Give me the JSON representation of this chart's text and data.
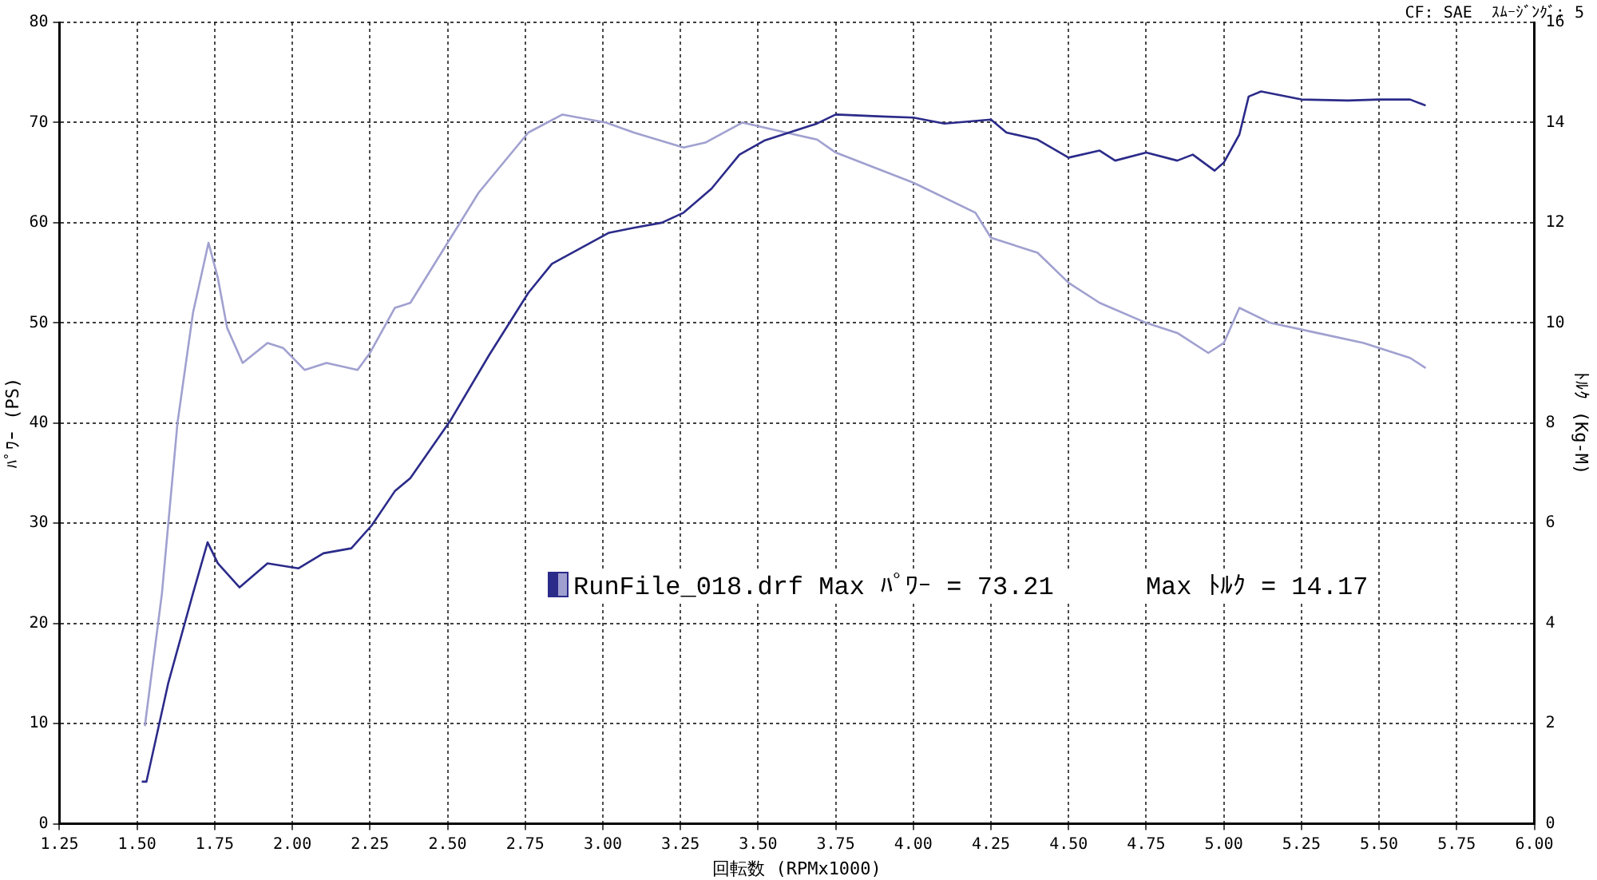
{
  "chart_data": {
    "type": "line",
    "xlabel": "回転数 (RPMx1000)",
    "ylabel": "ﾊﾟﾜｰ (PS)",
    "y2label": "ﾄﾙｸ (Kg-M)",
    "annotations": [
      "CF: SAE  ｽﾑｰｼﾞﾝｸﾞ: 5",
      "RunFile_018.drf Max ﾊﾟﾜｰ = 73.21      Max ﾄﾙｸ = 14.17"
    ],
    "xlim": [
      1.25,
      6.0
    ],
    "xticks": [
      {
        "value": 1.25,
        "label": "1.25"
      },
      {
        "value": 1.5,
        "label": "1.50"
      },
      {
        "value": 1.75,
        "label": "1.75"
      },
      {
        "value": 2.0,
        "label": "2.00"
      },
      {
        "value": 2.25,
        "label": "2.25"
      },
      {
        "value": 2.5,
        "label": "2.50"
      },
      {
        "value": 2.75,
        "label": "2.75"
      },
      {
        "value": 3.0,
        "label": "3.00"
      },
      {
        "value": 3.25,
        "label": "3.25"
      },
      {
        "value": 3.5,
        "label": "3.50"
      },
      {
        "value": 3.75,
        "label": "3.75"
      },
      {
        "value": 4.0,
        "label": "4.00"
      },
      {
        "value": 4.25,
        "label": "4.25"
      },
      {
        "value": 4.5,
        "label": "4.50"
      },
      {
        "value": 4.75,
        "label": "4.75"
      },
      {
        "value": 5.0,
        "label": "5.00"
      },
      {
        "value": 5.25,
        "label": "5.25"
      },
      {
        "value": 5.5,
        "label": "5.50"
      },
      {
        "value": 5.75,
        "label": "5.75"
      },
      {
        "value": 6.0,
        "label": "6.00"
      }
    ],
    "ylim": [
      0,
      80
    ],
    "yticks": [
      0,
      10,
      20,
      30,
      40,
      50,
      60,
      70,
      80
    ],
    "y2lim": [
      0,
      16
    ],
    "y2ticks": [
      0,
      2,
      4,
      6,
      8,
      10,
      12,
      14,
      16
    ],
    "grid": true,
    "legend": false,
    "line_style": "solid",
    "series": [
      {
        "color": "#2b2b8a",
        "axis": "y",
        "x": [
          1.515,
          1.53,
          1.6,
          1.68,
          1.727,
          1.76,
          1.83,
          1.92,
          2.02,
          2.1,
          2.19,
          2.256,
          2.33,
          2.38,
          2.508,
          2.634,
          2.76,
          2.836,
          3.02,
          3.1,
          3.19,
          3.26,
          3.35,
          3.44,
          3.52,
          3.69,
          3.75,
          3.9,
          4.0,
          4.1,
          4.25,
          4.3,
          4.4,
          4.5,
          4.6,
          4.65,
          4.75,
          4.85,
          4.9,
          4.97,
          5.0,
          5.05,
          5.08,
          5.12,
          5.25,
          5.4,
          5.5,
          5.6,
          5.65
        ],
        "values": [
          4.2,
          4.2,
          14,
          23,
          28.1,
          26,
          23.6,
          26,
          25.5,
          27,
          27.5,
          29.8,
          33.2,
          34.5,
          40.2,
          46.8,
          53,
          55.9,
          59,
          59.5,
          60,
          61,
          63.4,
          66.8,
          68.2,
          69.9,
          70.8,
          70.6,
          70.5,
          69.9,
          70.3,
          69,
          68.3,
          66.5,
          67.2,
          66.2,
          67,
          66.2,
          66.8,
          65.2,
          66,
          68.8,
          72.6,
          73.1,
          72.3,
          72.2,
          72.3,
          72.3,
          71.7
        ]
      },
      {
        "color": "#a0a0d0",
        "axis": "y2",
        "x": [
          1.525,
          1.58,
          1.63,
          1.68,
          1.73,
          1.76,
          1.79,
          1.84,
          1.92,
          1.97,
          2.04,
          2.11,
          2.21,
          2.25,
          2.33,
          2.38,
          2.51,
          2.6,
          2.76,
          2.87,
          3.01,
          3.1,
          3.26,
          3.33,
          3.45,
          3.59,
          3.69,
          3.75,
          4.0,
          4.2,
          4.25,
          4.4,
          4.5,
          4.6,
          4.75,
          4.85,
          4.95,
          5.0,
          5.05,
          5.15,
          5.3,
          5.45,
          5.6,
          5.65
        ],
        "values": [
          1.95,
          4.6,
          8.0,
          10.2,
          11.6,
          10.9,
          9.9,
          9.2,
          9.6,
          9.5,
          9.06,
          9.2,
          9.06,
          9.4,
          10.3,
          10.4,
          11.7,
          12.6,
          13.8,
          14.16,
          14.0,
          13.8,
          13.5,
          13.6,
          14.0,
          13.8,
          13.66,
          13.4,
          12.8,
          12.2,
          11.7,
          11.4,
          10.8,
          10.4,
          10.0,
          9.8,
          9.4,
          9.6,
          10.3,
          10.0,
          9.8,
          9.6,
          9.3,
          9.1
        ]
      }
    ]
  }
}
